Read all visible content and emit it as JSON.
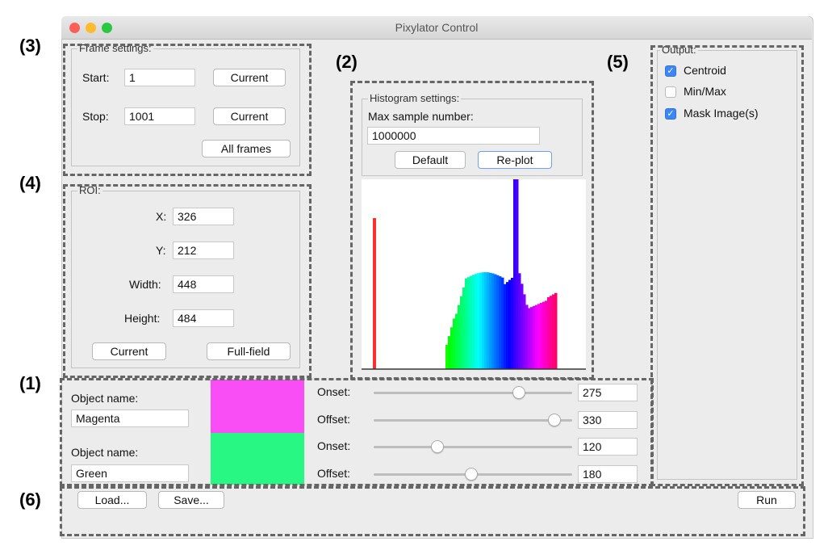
{
  "window": {
    "title": "Pixylator Control",
    "traffic_lights": {
      "close": "#fc5f57",
      "minimize": "#fdbc2e",
      "zoom": "#28c840"
    }
  },
  "callouts": [
    "(3)",
    "(2)",
    "(5)",
    "(4)",
    "(1)",
    "(6)"
  ],
  "frame_settings": {
    "title": "Frame settings:",
    "start_label": "Start:",
    "start_value": "1",
    "stop_label": "Stop:",
    "stop_value": "1001",
    "current_button": "Current",
    "all_frames_button": "All frames"
  },
  "roi": {
    "title": "ROI:",
    "x_label": "X:",
    "x_value": "326",
    "y_label": "Y:",
    "y_value": "212",
    "width_label": "Width:",
    "width_value": "448",
    "height_label": "Height:",
    "height_value": "484",
    "current_button": "Current",
    "full_field_button": "Full-field"
  },
  "histogram": {
    "title": "Histogram settings:",
    "max_sample_label": "Max sample number:",
    "max_sample_value": "1000000",
    "default_button": "Default",
    "replot_button": "Re-plot",
    "marker_color": "#ff3030",
    "colormap": "hue"
  },
  "output": {
    "title": "Output:",
    "options": [
      {
        "label": "Centroid",
        "checked": true
      },
      {
        "label": "Min/Max",
        "checked": false
      },
      {
        "label": "Mask Image(s)",
        "checked": true
      }
    ]
  },
  "objects": [
    {
      "name_label": "Object name:",
      "name_value": "Magenta",
      "color": "#f94df5",
      "onset_label": "Onset:",
      "onset_value": "275",
      "onset_fraction": 0.73,
      "offset_label": "Offset:",
      "offset_value": "330",
      "offset_fraction": 0.91
    },
    {
      "name_label": "Object name:",
      "name_value": "Green",
      "color": "#29f783",
      "onset_label": "Onset:",
      "onset_value": "120",
      "onset_fraction": 0.32,
      "offset_label": "Offset:",
      "offset_value": "180",
      "offset_fraction": 0.49
    }
  ],
  "bottom_bar": {
    "load_button": "Load...",
    "save_button": "Save...",
    "run_button": "Run"
  }
}
